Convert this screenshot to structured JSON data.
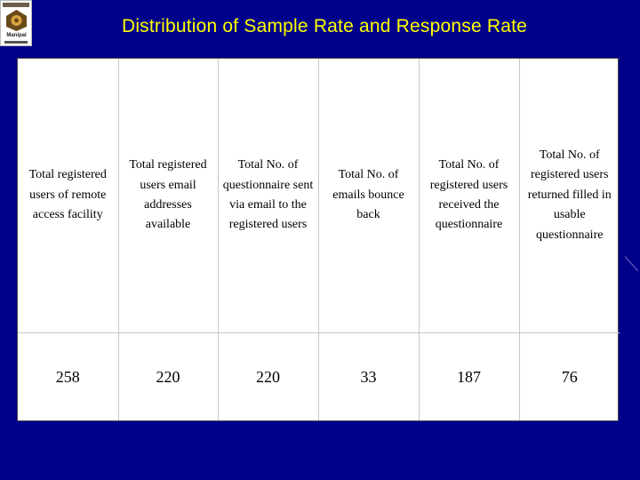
{
  "logo": {
    "name": "Manipal"
  },
  "title": "Distribution of Sample Rate and Response Rate",
  "table": {
    "headers": [
      "Total registered users of remote access facility",
      "Total registered users email addresses available",
      "Total No. of questionnaire sent via email to the registered users",
      "Total No. of emails bounce back",
      "Total No. of registered users received the questionnaire",
      "Total No. of registered users returned filled in usable questionnaire"
    ],
    "values": [
      "258",
      "220",
      "220",
      "33",
      "187",
      "76"
    ]
  },
  "colors": {
    "background": "#00008B",
    "title": "#FFFF00",
    "table_bg": "#FFFFFF",
    "text": "#000000"
  }
}
